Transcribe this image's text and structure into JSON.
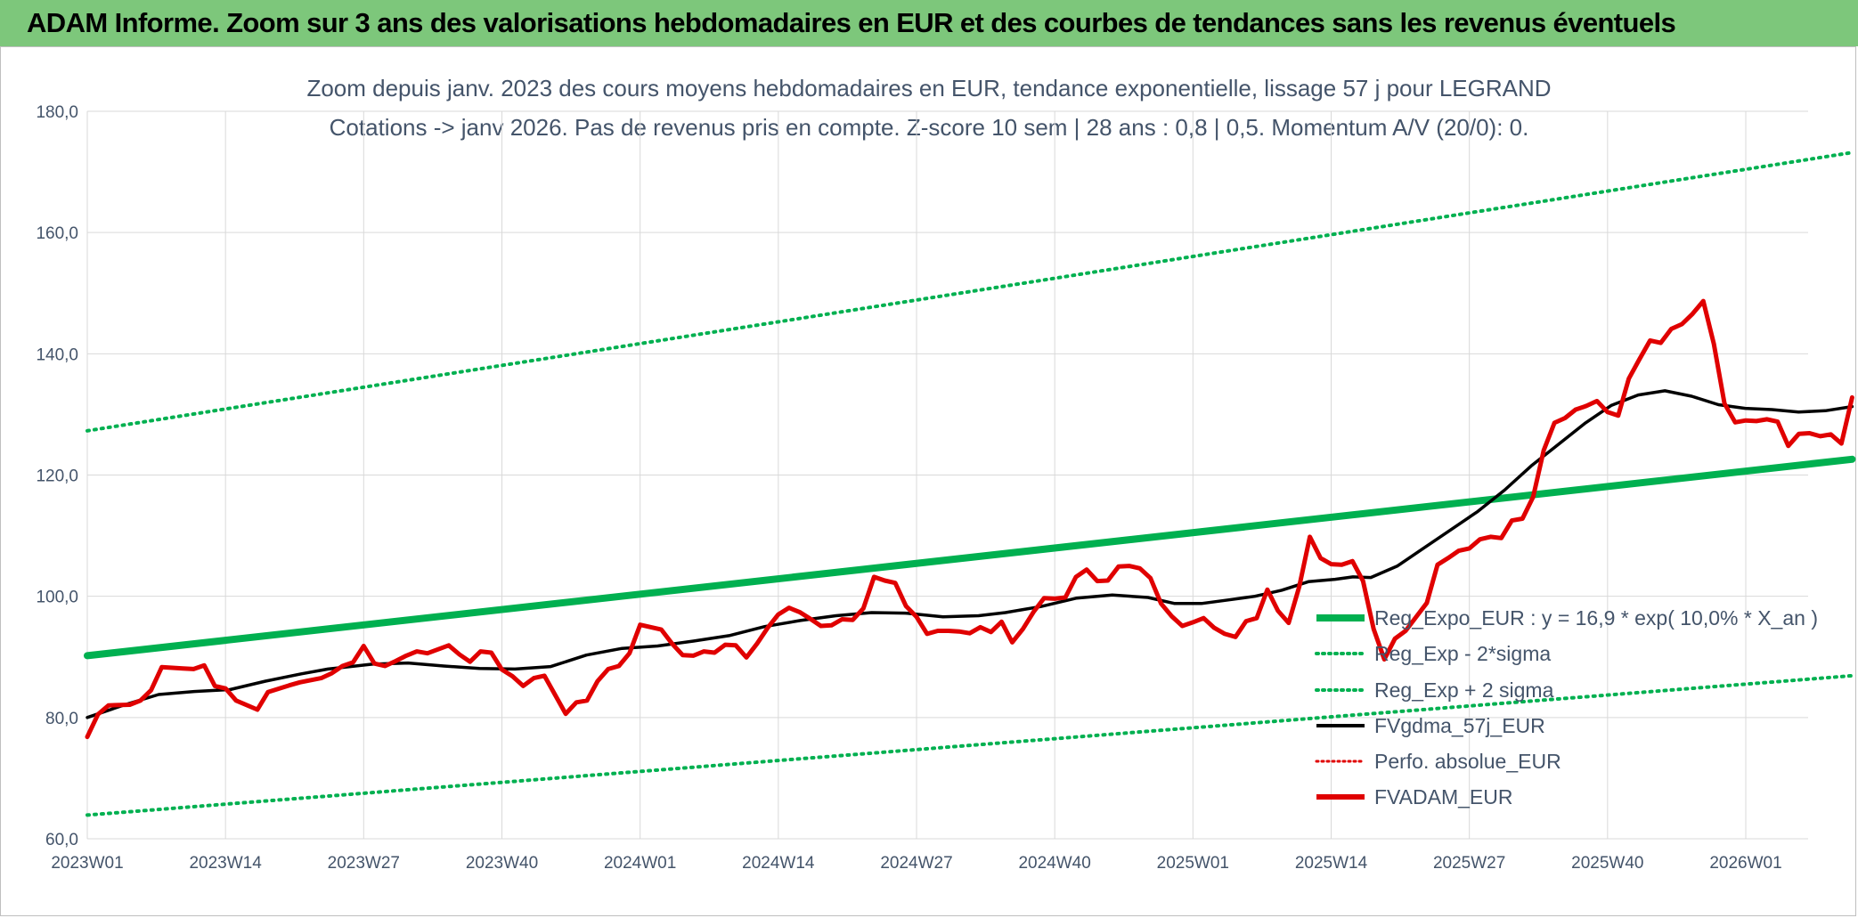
{
  "header": {
    "banner_title": "ADAM Informe. Zoom sur 3 ans des valorisations hebdomadaires en EUR et des courbes de tendances sans les revenus éventuels"
  },
  "colors": {
    "banner": "#7dc77b",
    "reg_expo": "#00b050",
    "bands": "#00b050",
    "gdma": "#000000",
    "perfo": "#e00000",
    "fvadam": "#e00000"
  },
  "chart_data": {
    "type": "line",
    "title": "Zoom depuis janv. 2023 des cours moyens hebdomadaires en EUR, tendance exponentielle, lissage 57 j pour LEGRAND",
    "subtitle": "Cotations -> janv 2026. Pas de revenus pris en compte. Z-score 10 sem | 28 ans : 0,8 | 0,5. Momentum A/V (20/0): 0.",
    "xlabel": "",
    "ylabel": "",
    "ylim": [
      60,
      180
    ],
    "yticks": [
      "60,0",
      "80,0",
      "100,0",
      "120,0",
      "140,0",
      "160,0",
      "180,0"
    ],
    "x_axis": {
      "week_range": [
        1,
        161
      ],
      "tick_labels": [
        "2023W01",
        "2023W14",
        "2023W27",
        "2023W40",
        "2024W01",
        "2024W14",
        "2024W27",
        "2024W40",
        "2025W01",
        "2025W14",
        "2025W27",
        "2025W40",
        "2026W01"
      ],
      "tick_weeks": [
        1,
        14,
        27,
        40,
        53,
        66,
        79,
        92,
        105,
        118,
        131,
        144,
        157
      ]
    },
    "grid": true,
    "legend_position": "bottom-right",
    "legend": [
      "Reg_Expo_EUR : y = 16,9 * exp( 10,0% *  X_an )",
      "Reg_Exp - 2*sigma",
      "Reg_Exp + 2 sigma",
      "FVgdma_57j_EUR",
      "Perfo. absolue_EUR",
      "FVADAM_EUR"
    ],
    "series": [
      {
        "name": "Reg_Expo_EUR : y = 16,9 * exp( 10,0% *  X_an )",
        "style": "solid-thick",
        "points": [
          [
            1,
            90.2
          ],
          [
            161,
            122.6
          ]
        ]
      },
      {
        "name": "Reg_Exp - 2*sigma",
        "style": "dotted",
        "points": [
          [
            1,
            63.9
          ],
          [
            161,
            86.9
          ]
        ]
      },
      {
        "name": "Reg_Exp + 2 sigma",
        "style": "dotted",
        "points": [
          [
            1,
            127.3
          ],
          [
            161,
            173.2
          ]
        ]
      },
      {
        "name": "FVgdma_57j_EUR",
        "style": "solid",
        "points": [
          [
            1,
            80.0
          ],
          [
            5,
            82.0
          ],
          [
            9,
            83.8
          ],
          [
            13,
            84.3
          ],
          [
            17,
            84.6
          ],
          [
            21,
            86.0
          ],
          [
            25,
            87.2
          ],
          [
            28,
            88.0
          ],
          [
            33,
            88.8
          ],
          [
            37,
            89.0
          ],
          [
            41,
            88.5
          ],
          [
            45,
            88.1
          ],
          [
            49,
            88.0
          ],
          [
            53,
            88.4
          ],
          [
            57,
            90.3
          ],
          [
            61,
            91.4
          ],
          [
            65,
            91.8
          ],
          [
            69,
            92.6
          ],
          [
            73,
            93.5
          ],
          [
            77,
            95.0
          ],
          [
            81,
            96.0
          ],
          [
            85,
            96.8
          ],
          [
            89,
            97.3
          ],
          [
            93,
            97.2
          ],
          [
            97,
            96.6
          ],
          [
            101,
            96.8
          ],
          [
            104,
            97.3
          ],
          [
            108,
            98.3
          ],
          [
            112,
            99.7
          ],
          [
            116,
            100.2
          ],
          [
            120,
            99.8
          ],
          [
            123,
            98.8
          ],
          [
            126,
            98.8
          ],
          [
            129,
            99.4
          ],
          [
            132,
            100.0
          ],
          [
            135,
            101.0
          ],
          [
            138,
            102.4
          ],
          [
            141,
            102.8
          ],
          [
            143,
            103.2
          ],
          [
            145,
            103.1
          ],
          [
            148,
            105.0
          ],
          [
            151,
            108.0
          ],
          [
            154,
            111.0
          ],
          [
            157,
            114.0
          ],
          [
            160,
            117.5
          ],
          [
            163,
            121.5
          ],
          [
            166,
            125.0
          ],
          [
            169,
            128.5
          ],
          [
            172,
            131.5
          ],
          [
            175,
            133.2
          ],
          [
            178,
            133.9
          ],
          [
            181,
            133.0
          ],
          [
            184,
            131.6
          ],
          [
            187,
            131.0
          ],
          [
            190,
            130.8
          ],
          [
            193,
            130.4
          ],
          [
            196,
            130.6
          ],
          [
            199,
            131.3
          ]
        ],
        "x_encoding_note_removed": true
      },
      {
        "name": "FVADAM_EUR",
        "style": "solid-thick",
        "points": [
          [
            1,
            76.8
          ],
          [
            2,
            80.5
          ],
          [
            3,
            82.0
          ],
          [
            5,
            82.1
          ],
          [
            6,
            82.8
          ],
          [
            7,
            84.5
          ],
          [
            8,
            88.3
          ],
          [
            10,
            88.1
          ],
          [
            11,
            88.0
          ],
          [
            12,
            88.6
          ],
          [
            13,
            85.2
          ],
          [
            14,
            84.8
          ],
          [
            15,
            82.8
          ],
          [
            17,
            81.3
          ],
          [
            18,
            84.2
          ],
          [
            20,
            85.3
          ],
          [
            21,
            85.8
          ],
          [
            23,
            86.5
          ],
          [
            24,
            87.3
          ],
          [
            25,
            88.5
          ],
          [
            26,
            89.1
          ],
          [
            27,
            91.8
          ],
          [
            28,
            88.9
          ],
          [
            29,
            88.5
          ],
          [
            30,
            89.3
          ],
          [
            31,
            90.2
          ],
          [
            32,
            90.9
          ],
          [
            33,
            90.6
          ],
          [
            35,
            91.9
          ],
          [
            36,
            90.4
          ],
          [
            37,
            89.2
          ],
          [
            38,
            90.9
          ],
          [
            39,
            90.7
          ],
          [
            40,
            87.9
          ],
          [
            41,
            86.8
          ],
          [
            42,
            85.2
          ],
          [
            43,
            86.5
          ],
          [
            44,
            86.9
          ],
          [
            46,
            80.6
          ],
          [
            47,
            82.5
          ],
          [
            48,
            82.8
          ],
          [
            49,
            86.0
          ],
          [
            50,
            88.0
          ],
          [
            51,
            88.5
          ],
          [
            52,
            90.6
          ],
          [
            53,
            95.3
          ],
          [
            55,
            94.5
          ],
          [
            56,
            92.2
          ],
          [
            57,
            90.3
          ],
          [
            58,
            90.2
          ],
          [
            59,
            90.9
          ],
          [
            60,
            90.7
          ],
          [
            61,
            92.0
          ],
          [
            62,
            91.9
          ],
          [
            63,
            89.9
          ],
          [
            64,
            92.2
          ],
          [
            65,
            94.8
          ],
          [
            66,
            97.0
          ],
          [
            67,
            98.1
          ],
          [
            68,
            97.4
          ],
          [
            69,
            96.3
          ],
          [
            70,
            95.1
          ],
          [
            71,
            95.2
          ],
          [
            72,
            96.2
          ],
          [
            73,
            96.1
          ],
          [
            74,
            98.0
          ],
          [
            75,
            103.2
          ],
          [
            76,
            102.6
          ],
          [
            77,
            102.2
          ],
          [
            78,
            98.4
          ],
          [
            79,
            96.6
          ],
          [
            80,
            93.8
          ],
          [
            81,
            94.3
          ],
          [
            82,
            94.3
          ],
          [
            83,
            94.2
          ],
          [
            84,
            93.9
          ],
          [
            85,
            94.9
          ],
          [
            86,
            94.1
          ],
          [
            87,
            95.8
          ],
          [
            88,
            92.4
          ],
          [
            89,
            94.6
          ],
          [
            90,
            97.4
          ],
          [
            91,
            99.7
          ],
          [
            92,
            99.6
          ],
          [
            93,
            99.8
          ],
          [
            94,
            103.2
          ],
          [
            95,
            104.4
          ],
          [
            96,
            102.5
          ],
          [
            97,
            102.6
          ],
          [
            98,
            104.9
          ],
          [
            99,
            105.0
          ],
          [
            100,
            104.6
          ],
          [
            101,
            103.0
          ],
          [
            102,
            98.8
          ],
          [
            103,
            96.7
          ],
          [
            104,
            95.1
          ],
          [
            105,
            95.7
          ],
          [
            106,
            96.4
          ],
          [
            107,
            94.8
          ],
          [
            108,
            93.8
          ],
          [
            109,
            93.3
          ],
          [
            110,
            95.9
          ],
          [
            111,
            96.4
          ],
          [
            112,
            101.1
          ],
          [
            113,
            97.6
          ],
          [
            114,
            95.6
          ],
          [
            115,
            101.6
          ],
          [
            116,
            109.8
          ],
          [
            117,
            106.3
          ],
          [
            118,
            105.3
          ],
          [
            119,
            105.2
          ],
          [
            120,
            105.8
          ],
          [
            121,
            102.5
          ],
          [
            122,
            94.6
          ],
          [
            123,
            89.6
          ],
          [
            124,
            93.0
          ],
          [
            125,
            94.3
          ],
          [
            126,
            96.6
          ],
          [
            127,
            98.9
          ],
          [
            128,
            105.2
          ],
          [
            129,
            106.3
          ],
          [
            130,
            107.5
          ],
          [
            131,
            107.9
          ],
          [
            132,
            109.4
          ],
          [
            133,
            109.8
          ],
          [
            134,
            109.6
          ],
          [
            135,
            112.5
          ],
          [
            136,
            112.8
          ],
          [
            137,
            116.4
          ],
          [
            138,
            124.1
          ],
          [
            139,
            128.6
          ],
          [
            140,
            129.4
          ],
          [
            141,
            130.8
          ],
          [
            142,
            131.4
          ],
          [
            143,
            132.2
          ],
          [
            144,
            130.4
          ],
          [
            145,
            129.8
          ],
          [
            146,
            135.9
          ],
          [
            147,
            139.1
          ],
          [
            148,
            142.2
          ],
          [
            149,
            141.8
          ],
          [
            150,
            144.1
          ],
          [
            151,
            144.9
          ],
          [
            152,
            146.6
          ],
          [
            153,
            148.7
          ],
          [
            154,
            141.6
          ],
          [
            155,
            131.8
          ],
          [
            156,
            128.7
          ],
          [
            157,
            129.0
          ],
          [
            158,
            128.9
          ],
          [
            159,
            129.2
          ],
          [
            160,
            128.8
          ],
          [
            161,
            124.8
          ],
          [
            162,
            126.8
          ],
          [
            163,
            126.9
          ],
          [
            164,
            126.4
          ],
          [
            165,
            126.7
          ],
          [
            166,
            125.2
          ],
          [
            167,
            132.8
          ]
        ]
      }
    ]
  }
}
